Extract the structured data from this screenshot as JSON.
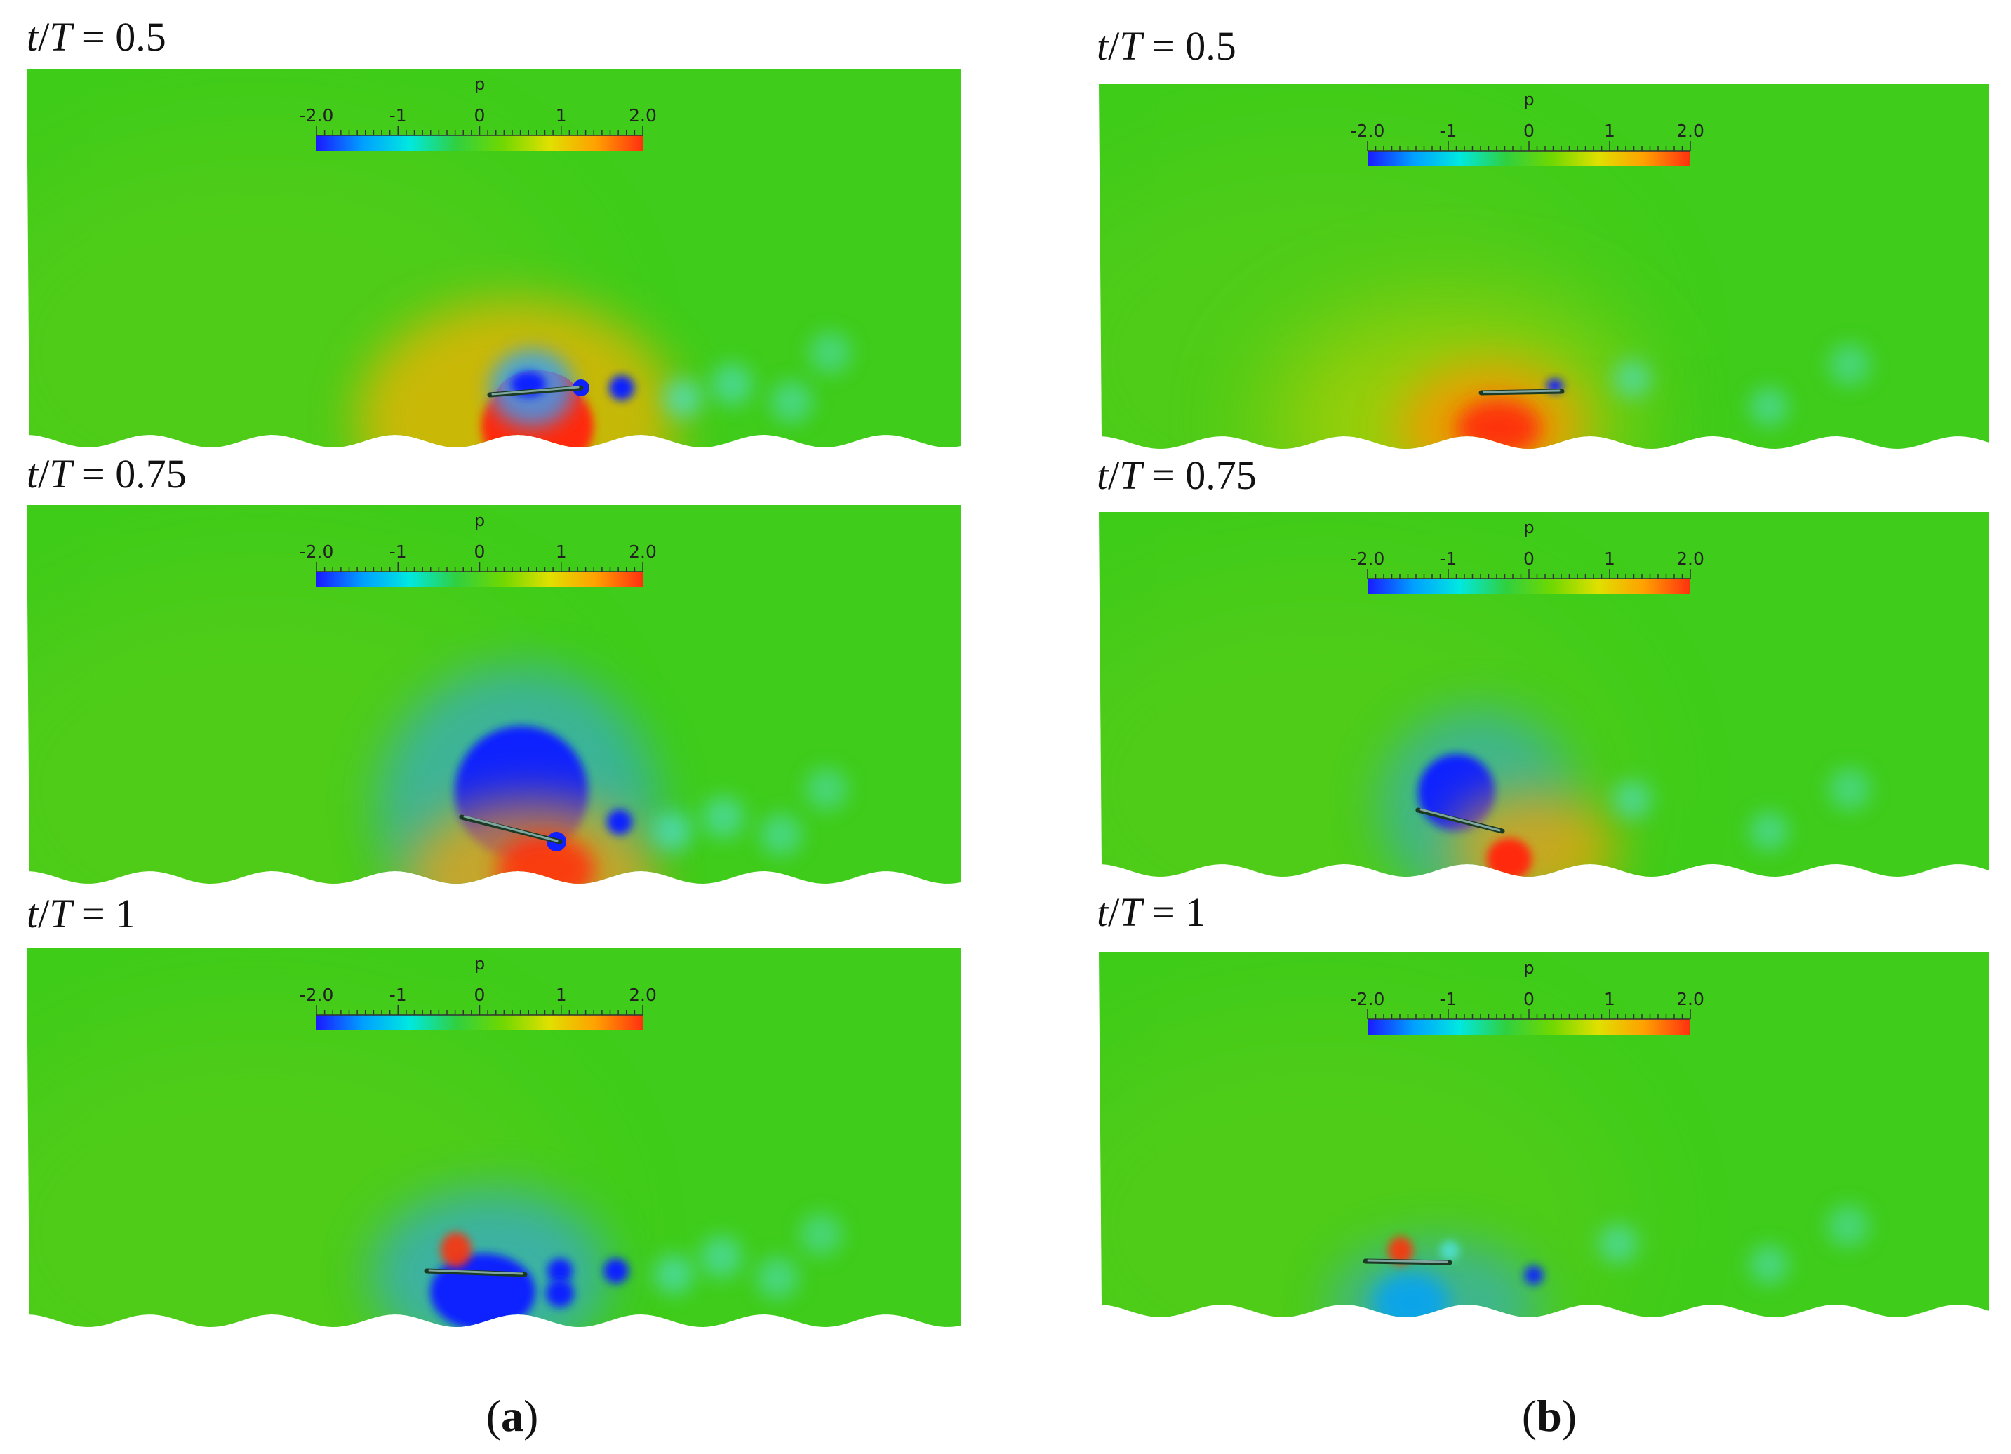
{
  "colorbar": {
    "title": "p",
    "ticks": [
      "-2.0",
      "-1",
      "0",
      "1",
      "2.0"
    ],
    "min": -2.0,
    "max": 2.0,
    "colors": [
      "#1a1aff",
      "#00a0ff",
      "#00e8e0",
      "#30d040",
      "#70d800",
      "#e0e000",
      "#ffa000",
      "#ff3010"
    ]
  },
  "field_background": "#3fcc1a",
  "columns": [
    {
      "caption_open": "(",
      "caption_letter": "a",
      "caption_close": ")",
      "panels": [
        {
          "time_var": "t",
          "time_period": "T",
          "time_eq": " = ",
          "time_value": "0.5"
        },
        {
          "time_var": "t",
          "time_period": "T",
          "time_eq": " = ",
          "time_value": "0.75"
        },
        {
          "time_var": "t",
          "time_period": "T",
          "time_eq": " = ",
          "time_value": "1"
        }
      ]
    },
    {
      "caption_open": "(",
      "caption_letter": "b",
      "caption_close": ")",
      "panels": [
        {
          "time_var": "t",
          "time_period": "T",
          "time_eq": " = ",
          "time_value": "0.5"
        },
        {
          "time_var": "t",
          "time_period": "T",
          "time_eq": " = ",
          "time_value": "0.75"
        },
        {
          "time_var": "t",
          "time_period": "T",
          "time_eq": " = ",
          "time_value": "1"
        }
      ]
    }
  ]
}
